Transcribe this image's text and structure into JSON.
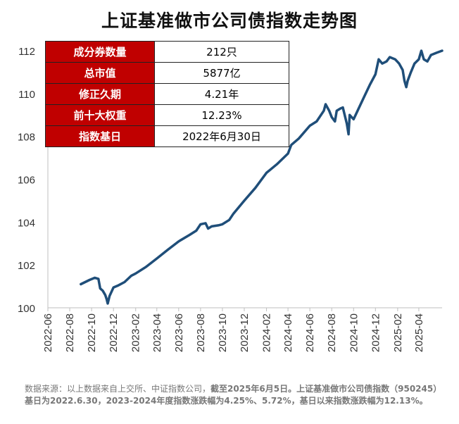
{
  "title": "上证基准做市公司债指数走势图",
  "info_table": [
    {
      "key": "成分券数量",
      "value": "212只"
    },
    {
      "key": "总市值",
      "value": "5877亿"
    },
    {
      "key": "修正久期",
      "value": "4.21年"
    },
    {
      "key": "前十大权重",
      "value": "12.23%"
    },
    {
      "key": "指数基日",
      "value": "2022年6月30日"
    }
  ],
  "note": {
    "plain": "数据来源：以上数据来自上交所、中证指数公司，",
    "bold": "截至2025年6月5日。上证基准做市公司债指数（950245）基日为2022.6.30，2023-2024年度指数涨跌幅为4.25%、5.72%，基日以来指数涨跌幅为12.13%。"
  },
  "colors": {
    "line": "#1f4e79",
    "table_key_bg": "#c00000"
  },
  "chart_data": {
    "type": "line",
    "title": "上证基准做市公司债指数走势图",
    "ylim": [
      100,
      112
    ],
    "y_ticks": [
      "100",
      "102",
      "104",
      "106",
      "108",
      "110",
      "112"
    ],
    "x_ticks": [
      "2022-06",
      "2022-08",
      "2022-10",
      "2022-12",
      "2023-02",
      "2023-04",
      "2023-06",
      "2023-08",
      "2023-10",
      "2023-12",
      "2024-02",
      "2024-04",
      "2024-06",
      "2024-08",
      "2024-10",
      "2024-12",
      "2025-02",
      "2025-04"
    ],
    "x_range": [
      "2022-06-01",
      "2025-06-05"
    ],
    "grid": false,
    "series": [
      {
        "values": [
          [
            "2022-09-01",
            101.1
          ],
          [
            "2022-09-25",
            101.3
          ],
          [
            "2022-10-10",
            101.4
          ],
          [
            "2022-10-20",
            101.35
          ],
          [
            "2022-10-25",
            100.9
          ],
          [
            "2022-11-01",
            100.8
          ],
          [
            "2022-11-08",
            100.6
          ],
          [
            "2022-11-12",
            100.4
          ],
          [
            "2022-11-15",
            100.2
          ],
          [
            "2022-11-20",
            100.55
          ],
          [
            "2022-12-01",
            100.95
          ],
          [
            "2022-12-15",
            101.05
          ],
          [
            "2023-01-01",
            101.2
          ],
          [
            "2023-01-20",
            101.5
          ],
          [
            "2023-02-01",
            101.6
          ],
          [
            "2023-03-01",
            101.9
          ],
          [
            "2023-04-01",
            102.3
          ],
          [
            "2023-05-01",
            102.7
          ],
          [
            "2023-06-01",
            103.1
          ],
          [
            "2023-07-01",
            103.4
          ],
          [
            "2023-07-20",
            103.6
          ],
          [
            "2023-08-01",
            103.9
          ],
          [
            "2023-08-15",
            103.95
          ],
          [
            "2023-08-22",
            103.7
          ],
          [
            "2023-09-01",
            103.8
          ],
          [
            "2023-09-20",
            103.85
          ],
          [
            "2023-10-01",
            103.9
          ],
          [
            "2023-10-20",
            104.1
          ],
          [
            "2023-11-01",
            104.4
          ],
          [
            "2023-12-01",
            105.0
          ],
          [
            "2024-01-01",
            105.6
          ],
          [
            "2024-02-01",
            106.3
          ],
          [
            "2024-03-01",
            106.7
          ],
          [
            "2024-04-01",
            107.2
          ],
          [
            "2024-04-10",
            107.6
          ],
          [
            "2024-05-01",
            107.9
          ],
          [
            "2024-06-01",
            108.5
          ],
          [
            "2024-06-20",
            108.7
          ],
          [
            "2024-07-10",
            109.2
          ],
          [
            "2024-07-15",
            109.5
          ],
          [
            "2024-07-25",
            109.2
          ],
          [
            "2024-08-01",
            108.9
          ],
          [
            "2024-08-10",
            108.7
          ],
          [
            "2024-08-15",
            109.2
          ],
          [
            "2024-08-25",
            109.3
          ],
          [
            "2024-09-01",
            109.35
          ],
          [
            "2024-09-12",
            108.6
          ],
          [
            "2024-09-17",
            108.1
          ],
          [
            "2024-09-20",
            109.0
          ],
          [
            "2024-10-01",
            108.8
          ],
          [
            "2024-10-15",
            109.3
          ],
          [
            "2024-11-01",
            109.9
          ],
          [
            "2024-11-15",
            110.4
          ],
          [
            "2024-12-01",
            110.9
          ],
          [
            "2024-12-10",
            111.6
          ],
          [
            "2024-12-20",
            111.4
          ],
          [
            "2025-01-01",
            111.5
          ],
          [
            "2025-01-10",
            111.7
          ],
          [
            "2025-01-25",
            111.6
          ],
          [
            "2025-02-05",
            111.4
          ],
          [
            "2025-02-15",
            111.1
          ],
          [
            "2025-02-20",
            110.6
          ],
          [
            "2025-02-25",
            110.3
          ],
          [
            "2025-03-01",
            110.6
          ],
          [
            "2025-03-10",
            111.0
          ],
          [
            "2025-03-20",
            111.4
          ],
          [
            "2025-04-01",
            111.6
          ],
          [
            "2025-04-08",
            112.0
          ],
          [
            "2025-04-15",
            111.6
          ],
          [
            "2025-04-25",
            111.5
          ],
          [
            "2025-05-05",
            111.8
          ],
          [
            "2025-05-20",
            111.9
          ],
          [
            "2025-06-05",
            112.0
          ]
        ]
      }
    ]
  }
}
